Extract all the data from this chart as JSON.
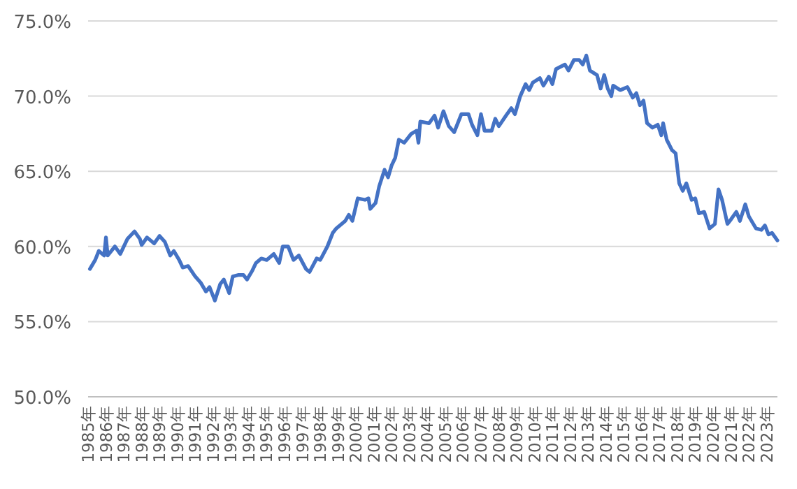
{
  "chart_data": {
    "type": "line",
    "color": "#4472c4",
    "grid": "y",
    "line_style": "solid",
    "marker": "none",
    "x": [
      1985.1,
      1985.4,
      1985.6,
      1985.9,
      1986.0,
      1986.1,
      1986.5,
      1986.8,
      1987.2,
      1987.6,
      1987.9,
      1988.0,
      1988.3,
      1988.7,
      1989.0,
      1989.3,
      1989.6,
      1989.8,
      1990.1,
      1990.3,
      1990.6,
      1991.0,
      1991.3,
      1991.6,
      1991.8,
      1992.1,
      1992.4,
      1992.6,
      1992.9,
      1993.1,
      1993.4,
      1993.7,
      1993.9,
      1994.2,
      1994.4,
      1994.7,
      1995.0,
      1995.4,
      1995.7,
      1995.9,
      1996.2,
      1996.5,
      1996.8,
      1997.2,
      1997.4,
      1997.8,
      1998.0,
      1998.4,
      1998.7,
      1998.9,
      1999.4,
      1999.6,
      1999.8,
      2000.1,
      2000.5,
      2000.7,
      2000.8,
      2001.1,
      2001.3,
      2001.6,
      2001.8,
      2002.0,
      2002.2,
      2002.4,
      2002.7,
      2003.1,
      2003.4,
      2003.5,
      2003.6,
      2004.1,
      2004.4,
      2004.6,
      2004.9,
      2005.2,
      2005.5,
      2005.9,
      2006.3,
      2006.5,
      2006.8,
      2007.0,
      2007.2,
      2007.6,
      2007.8,
      2008.0,
      2008.4,
      2008.7,
      2008.9,
      2009.2,
      2009.5,
      2009.7,
      2009.9,
      2010.3,
      2010.5,
      2010.8,
      2011.0,
      2011.2,
      2011.7,
      2011.9,
      2012.2,
      2012.5,
      2012.7,
      2012.9,
      2013.1,
      2013.5,
      2013.7,
      2013.9,
      2014.1,
      2014.3,
      2014.4,
      2014.8,
      2015.2,
      2015.5,
      2015.7,
      2015.9,
      2016.1,
      2016.3,
      2016.6,
      2016.9,
      2017.1,
      2017.2,
      2017.4,
      2017.7,
      2017.9,
      2018.1,
      2018.3,
      2018.5,
      2018.8,
      2019.0,
      2019.2,
      2019.5,
      2019.8,
      2020.1,
      2020.3,
      2020.5,
      2020.8,
      2021.0,
      2021.3,
      2021.5,
      2021.8,
      2022.0,
      2022.4,
      2022.7,
      2022.9,
      2023.1,
      2023.3,
      2023.6
    ],
    "values": [
      58.5,
      59.1,
      59.7,
      59.4,
      60.6,
      59.4,
      60.0,
      59.5,
      60.5,
      61.0,
      60.5,
      60.1,
      60.6,
      60.2,
      60.7,
      60.3,
      59.4,
      59.7,
      59.1,
      58.6,
      58.7,
      58.0,
      57.6,
      57.0,
      57.3,
      56.4,
      57.5,
      57.8,
      56.9,
      58.0,
      58.1,
      58.1,
      57.8,
      58.4,
      58.9,
      59.2,
      59.1,
      59.5,
      58.9,
      60.0,
      60.0,
      59.1,
      59.4,
      58.5,
      58.3,
      59.2,
      59.1,
      60.0,
      60.9,
      61.2,
      61.7,
      62.1,
      61.7,
      63.2,
      63.1,
      63.2,
      62.5,
      62.9,
      64.0,
      65.1,
      64.6,
      65.4,
      65.9,
      67.1,
      66.9,
      67.5,
      67.7,
      66.9,
      68.3,
      68.2,
      68.7,
      67.9,
      69.0,
      68.0,
      67.6,
      68.8,
      68.8,
      68.1,
      67.4,
      68.8,
      67.7,
      67.7,
      68.5,
      68.0,
      68.7,
      69.2,
      68.8,
      70.0,
      70.8,
      70.4,
      70.9,
      71.2,
      70.7,
      71.3,
      70.8,
      71.8,
      72.1,
      71.7,
      72.4,
      72.4,
      72.1,
      72.7,
      71.7,
      71.4,
      70.5,
      71.4,
      70.5,
      70.0,
      70.7,
      70.4,
      70.6,
      69.9,
      70.2,
      69.4,
      69.7,
      68.2,
      67.9,
      68.1,
      67.4,
      68.2,
      67.1,
      66.4,
      66.2,
      64.2,
      63.7,
      64.2,
      63.1,
      63.2,
      62.2,
      62.3,
      61.2,
      61.5,
      63.8,
      63.1,
      61.5,
      61.8,
      62.3,
      61.7,
      62.8,
      62.0,
      61.2,
      61.1,
      61.4,
      60.8,
      60.9,
      60.4
    ],
    "xlim": [
      1985,
      2023.6
    ],
    "ylim": [
      50,
      75
    ],
    "xticks": [
      {
        "value": 1985,
        "label": "1985年"
      },
      {
        "value": 1986,
        "label": "1986年"
      },
      {
        "value": 1987,
        "label": "1987年"
      },
      {
        "value": 1988,
        "label": "1988年"
      },
      {
        "value": 1989,
        "label": "1989年"
      },
      {
        "value": 1990,
        "label": "1990年"
      },
      {
        "value": 1991,
        "label": "1991年"
      },
      {
        "value": 1992,
        "label": "1992年"
      },
      {
        "value": 1993,
        "label": "1993年"
      },
      {
        "value": 1994,
        "label": "1994年"
      },
      {
        "value": 1995,
        "label": "1995年"
      },
      {
        "value": 1996,
        "label": "1996年"
      },
      {
        "value": 1997,
        "label": "1997年"
      },
      {
        "value": 1998,
        "label": "1998年"
      },
      {
        "value": 1999,
        "label": "1999年"
      },
      {
        "value": 2000,
        "label": "2000年"
      },
      {
        "value": 2001,
        "label": "2001年"
      },
      {
        "value": 2002,
        "label": "2002年"
      },
      {
        "value": 2003,
        "label": "2003年"
      },
      {
        "value": 2004,
        "label": "2004年"
      },
      {
        "value": 2005,
        "label": "2005年"
      },
      {
        "value": 2006,
        "label": "2006年"
      },
      {
        "value": 2007,
        "label": "2007年"
      },
      {
        "value": 2008,
        "label": "2008年"
      },
      {
        "value": 2009,
        "label": "2009年"
      },
      {
        "value": 2010,
        "label": "2010年"
      },
      {
        "value": 2011,
        "label": "2011年"
      },
      {
        "value": 2012,
        "label": "2012年"
      },
      {
        "value": 2013,
        "label": "2013年"
      },
      {
        "value": 2014,
        "label": "2014年"
      },
      {
        "value": 2015,
        "label": "2015年"
      },
      {
        "value": 2016,
        "label": "2016年"
      },
      {
        "value": 2017,
        "label": "2017年"
      },
      {
        "value": 2018,
        "label": "2018年"
      },
      {
        "value": 2019,
        "label": "2019年"
      },
      {
        "value": 2020,
        "label": "2020年"
      },
      {
        "value": 2021,
        "label": "2021年"
      },
      {
        "value": 2022,
        "label": "2022年"
      },
      {
        "value": 2023,
        "label": "2023年"
      }
    ],
    "yticks": [
      {
        "value": 50,
        "label": "50.0%"
      },
      {
        "value": 55,
        "label": "55.0%"
      },
      {
        "value": 60,
        "label": "60.0%"
      },
      {
        "value": 65,
        "label": "65.0%"
      },
      {
        "value": 70,
        "label": "70.0%"
      },
      {
        "value": 75,
        "label": "75.0%"
      }
    ]
  }
}
